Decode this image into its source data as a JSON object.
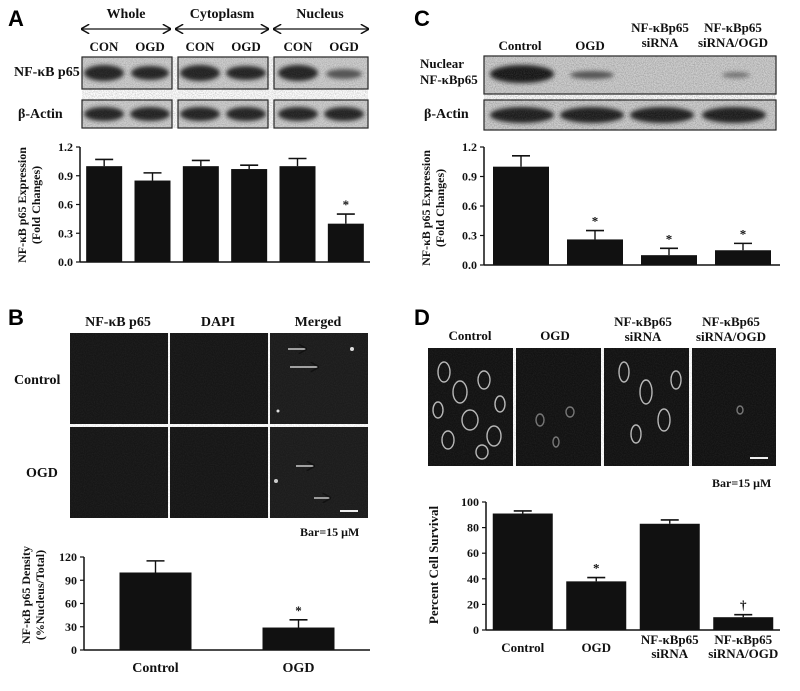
{
  "panels": {
    "A": {
      "letter": "A",
      "groups": [
        "Whole",
        "Cytoplasm",
        "Nucleus"
      ],
      "lanes": [
        "CON",
        "OGD",
        "CON",
        "OGD",
        "CON",
        "OGD"
      ],
      "blot_rows": [
        "NF-κB p65",
        "β-Actin"
      ],
      "ylabel_line1": "NF-κB p65 Expression",
      "ylabel_line2": "(Fold  Changes)"
    },
    "B": {
      "letter": "B",
      "columns": [
        "NF-κB p65",
        "DAPI",
        "Merged"
      ],
      "rows": [
        "Control",
        "OGD"
      ],
      "scale_label": "Bar=15 μM",
      "ylabel_line1": "NF-κB p65 Density",
      "ylabel_line2": "(%Nucleus/Total)"
    },
    "C": {
      "letter": "C",
      "lanes": [
        "Control",
        "OGD",
        "NF-κBp65 siRNA",
        "NF-κBp65 siRNA/OGD"
      ],
      "blot_row1_a": "Nuclear",
      "blot_row1_b": "NF-κBp65",
      "blot_row2": "β-Actin",
      "ylabel_line1": "NF-κB p65 Expression",
      "ylabel_line2": "(Fold  Changes)"
    },
    "D": {
      "letter": "D",
      "columns": [
        "Control",
        "OGD",
        "NF-κBp65 siRNA",
        "NF-κBp65 siRNA/OGD"
      ],
      "scale_label": "Bar=15 μM",
      "ylabel": "Percent Cell Survival"
    }
  },
  "chart_data": [
    {
      "id": "A",
      "type": "bar",
      "categories": [
        "CON",
        "OGD",
        "CON",
        "OGD",
        "CON",
        "OGD"
      ],
      "values": [
        1.0,
        0.85,
        1.0,
        0.97,
        1.0,
        0.4
      ],
      "errors": [
        0.07,
        0.08,
        0.06,
        0.04,
        0.08,
        0.1
      ],
      "marks": [
        "",
        "",
        "",
        "",
        "",
        "*"
      ],
      "ylabel": "NF-κB p65 Expression (Fold Changes)",
      "ylim": [
        0,
        1.2
      ],
      "yticks": [
        "0.0",
        "0.3",
        "0.6",
        "0.9",
        "1.2"
      ]
    },
    {
      "id": "B",
      "type": "bar",
      "categories": [
        "Control",
        "OGD"
      ],
      "values": [
        100,
        29
      ],
      "errors": [
        15,
        10
      ],
      "marks": [
        "",
        "*"
      ],
      "ylabel": "NF-κB p65 Density (%Nucleus/Total)",
      "ylim": [
        0,
        120
      ],
      "yticks": [
        "0",
        "30",
        "60",
        "90",
        "120"
      ]
    },
    {
      "id": "C",
      "type": "bar",
      "categories": [
        "Control",
        "OGD",
        "NF-κBp65 siRNA",
        "NF-κBp65 siRNA/OGD"
      ],
      "values": [
        1.0,
        0.26,
        0.1,
        0.15
      ],
      "errors": [
        0.11,
        0.09,
        0.07,
        0.07
      ],
      "marks": [
        "",
        "*",
        "*",
        "*"
      ],
      "ylabel": "NF-κB p65 Expression (Fold Changes)",
      "ylim": [
        0,
        1.2
      ],
      "yticks": [
        "0.0",
        "0.3",
        "0.6",
        "0.9",
        "1.2"
      ]
    },
    {
      "id": "D",
      "type": "bar",
      "categories": [
        "Control",
        "OGD",
        "NF-κBp65 siRNA",
        "NF-κBp65 siRNA/OGD"
      ],
      "values": [
        91,
        38,
        83,
        10
      ],
      "errors": [
        2,
        3,
        3,
        2
      ],
      "marks": [
        "",
        "*",
        "",
        "†"
      ],
      "ylabel": "Percent Cell Survival",
      "ylim": [
        0,
        100
      ],
      "yticks": [
        "0",
        "20",
        "40",
        "60",
        "80",
        "100"
      ]
    }
  ]
}
